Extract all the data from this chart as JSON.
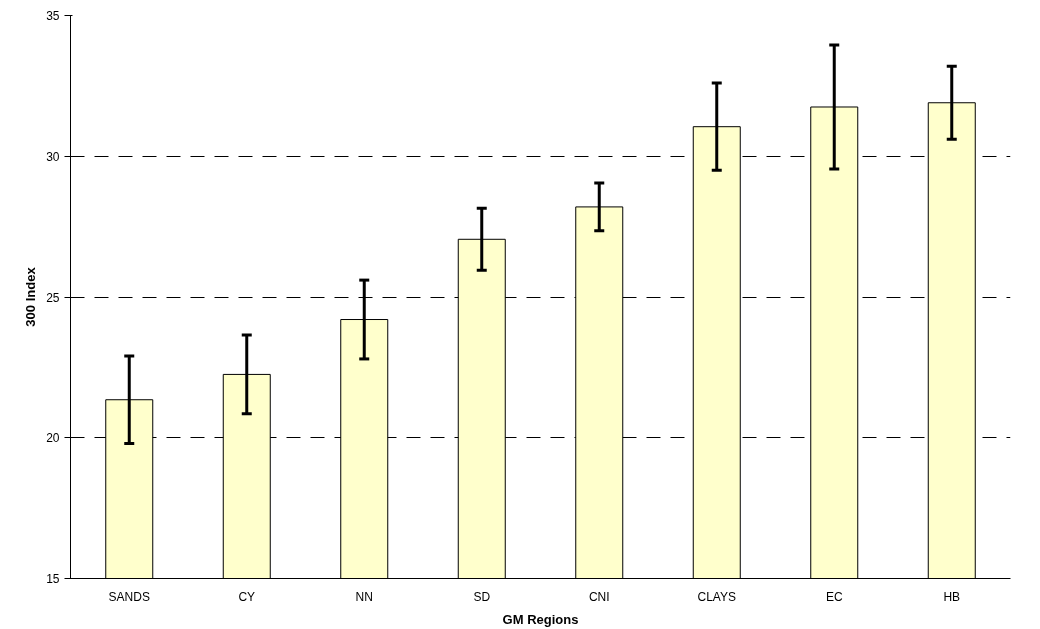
{
  "chart_data": {
    "type": "bar",
    "xlabel": "GM Regions",
    "ylabel": "300 Index",
    "categories": [
      "SANDS",
      "CY",
      "NN",
      "SD",
      "CNI",
      "CLAYS",
      "EC",
      "HB"
    ],
    "values": [
      21.35,
      22.25,
      24.2,
      27.05,
      28.2,
      31.05,
      31.75,
      31.9
    ],
    "errors": [
      1.55,
      1.4,
      1.4,
      1.1,
      0.85,
      1.55,
      2.2,
      1.3
    ],
    "color": "#ffffcc",
    "ylim": [
      15,
      35
    ],
    "yticks": [
      15,
      20,
      25,
      30,
      35
    ],
    "grid": "y"
  }
}
